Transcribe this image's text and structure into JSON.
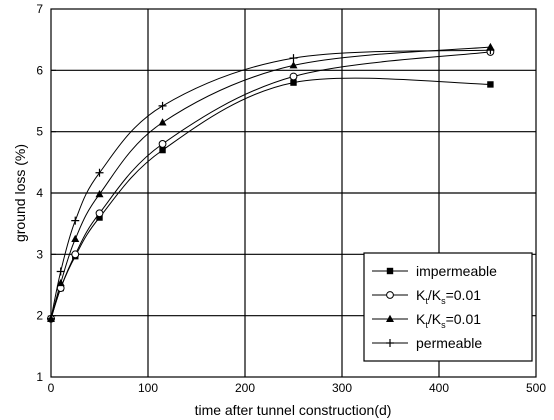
{
  "chart_data": {
    "type": "line",
    "title": "",
    "xlabel": "time after tunnel construction(d)",
    "ylabel": "ground loss (%)",
    "xlim": [
      0,
      500
    ],
    "ylim": [
      1,
      7
    ],
    "xticks": [
      "0",
      "100",
      "200",
      "300",
      "400",
      "500"
    ],
    "yticks": [
      "1",
      "2",
      "3",
      "4",
      "5",
      "6",
      "7"
    ],
    "grid": true,
    "legend_position": "bottom-right",
    "series": [
      {
        "name": "impermeable",
        "marker": "square",
        "x": [
          0,
          10,
          25,
          50,
          115,
          250,
          453
        ],
        "y": [
          1.95,
          2.45,
          2.97,
          3.6,
          4.7,
          5.8,
          5.77
        ]
      },
      {
        "name": "Kt/Ks=0.01",
        "label_parts": [
          "K",
          "t",
          "/K",
          "s",
          "=0.01"
        ],
        "marker": "circle-open",
        "x": [
          0,
          10,
          25,
          50,
          115,
          250,
          453
        ],
        "y": [
          1.95,
          2.45,
          3.0,
          3.67,
          4.8,
          5.9,
          6.3
        ]
      },
      {
        "name": "Kt/Ks=0.01",
        "label_parts": [
          "K",
          "t",
          "/K",
          "s",
          "=0.01"
        ],
        "marker": "triangle",
        "x": [
          0,
          10,
          25,
          50,
          115,
          250,
          453
        ],
        "y": [
          1.95,
          2.53,
          3.25,
          3.98,
          5.15,
          6.08,
          6.38
        ]
      },
      {
        "name": "permeable",
        "marker": "plus",
        "x": [
          0,
          10,
          25,
          50,
          115,
          250,
          453
        ],
        "y": [
          1.95,
          2.72,
          3.55,
          4.33,
          5.42,
          6.2,
          6.33
        ]
      }
    ]
  }
}
